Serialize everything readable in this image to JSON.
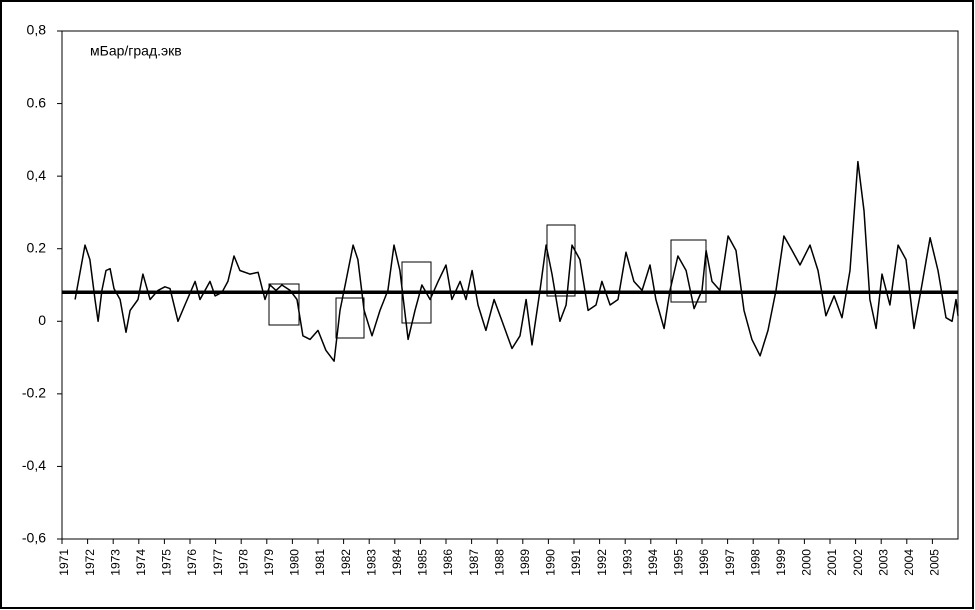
{
  "chart_data": {
    "type": "line",
    "annotation": "мБар/град.экв",
    "x": [
      1971.51,
      1971.9,
      1972.09,
      1972.29,
      1972.41,
      1972.56,
      1972.72,
      1972.88,
      1973.03,
      1973.27,
      1973.5,
      1973.66,
      1973.97,
      1974.16,
      1974.44,
      1974.75,
      1975.02,
      1975.22,
      1975.53,
      1975.8,
      1976.2,
      1976.39,
      1976.78,
      1976.98,
      1977.25,
      1977.48,
      1977.72,
      1977.95,
      1978.34,
      1978.66,
      1978.93,
      1979.13,
      1979.36,
      1979.59,
      1979.91,
      1980.18,
      1980.41,
      1980.69,
      1981.0,
      1981.31,
      1981.63,
      1981.86,
      1982.09,
      1982.37,
      1982.56,
      1982.8,
      1983.11,
      1983.42,
      1983.73,
      1983.97,
      1984.2,
      1984.52,
      1984.79,
      1985.06,
      1985.38,
      1985.69,
      1986.0,
      1986.23,
      1986.55,
      1986.78,
      1987.02,
      1987.25,
      1987.56,
      1987.88,
      1988.19,
      1988.58,
      1988.89,
      1989.13,
      1989.36,
      1989.67,
      1989.91,
      1990.14,
      1990.45,
      1990.69,
      1990.92,
      1991.23,
      1991.55,
      1991.86,
      1992.09,
      1992.41,
      1992.72,
      1993.03,
      1993.34,
      1993.66,
      1993.97,
      1994.2,
      1994.52,
      1994.75,
      1995.06,
      1995.38,
      1995.69,
      1996.0,
      1996.16,
      1996.39,
      1996.7,
      1997.02,
      1997.33,
      1997.64,
      1997.95,
      1998.27,
      1998.58,
      1998.89,
      1999.2,
      1999.52,
      1999.83,
      2000.22,
      2000.53,
      2000.84,
      2001.16,
      2001.47,
      2001.78,
      2002.09,
      2002.33,
      2002.56,
      2002.8,
      2003.03,
      2003.34,
      2003.66,
      2003.97,
      2004.28,
      2004.59,
      2004.91,
      2005.22,
      2005.53,
      2005.77,
      2005.92,
      2006.0
    ],
    "series": [
      {
        "name": null,
        "color": "#000000",
        "values": [
          0.06,
          0.21,
          0.17,
          0.06,
          0.0,
          0.085,
          0.14,
          0.145,
          0.09,
          0.06,
          -0.03,
          0.03,
          0.06,
          0.13,
          0.06,
          0.085,
          0.095,
          0.09,
          0.0,
          0.045,
          0.11,
          0.06,
          0.11,
          0.07,
          0.08,
          0.11,
          0.18,
          0.14,
          0.13,
          0.135,
          0.06,
          0.1,
          0.085,
          0.1,
          0.085,
          0.06,
          -0.04,
          -0.05,
          -0.025,
          -0.08,
          -0.11,
          0.03,
          0.11,
          0.21,
          0.17,
          0.03,
          -0.04,
          0.03,
          0.085,
          0.21,
          0.14,
          -0.05,
          0.03,
          0.1,
          0.06,
          0.11,
          0.155,
          0.06,
          0.11,
          0.06,
          0.14,
          0.045,
          -0.025,
          0.06,
          0.0,
          -0.075,
          -0.04,
          0.06,
          -0.065,
          0.085,
          0.21,
          0.13,
          0.0,
          0.045,
          0.21,
          0.17,
          0.03,
          0.045,
          0.11,
          0.045,
          0.06,
          0.19,
          0.11,
          0.085,
          0.155,
          0.06,
          -0.02,
          0.085,
          0.18,
          0.14,
          0.035,
          0.085,
          0.195,
          0.11,
          0.085,
          0.235,
          0.195,
          0.03,
          -0.05,
          -0.095,
          -0.025,
          0.085,
          0.235,
          0.195,
          0.155,
          0.21,
          0.14,
          0.015,
          0.07,
          0.01,
          0.14,
          0.44,
          0.305,
          0.06,
          -0.02,
          0.13,
          0.045,
          0.21,
          0.17,
          -0.02,
          0.1,
          0.23,
          0.14,
          0.01,
          0.0,
          0.06,
          0.015
        ]
      }
    ],
    "reference_line": 0.08,
    "xlim": [
      1971,
      2006
    ],
    "xticks": [
      1971,
      1972,
      1973,
      1974,
      1975,
      1976,
      1977,
      1978,
      1979,
      1980,
      1981,
      1982,
      1983,
      1984,
      1985,
      1986,
      1987,
      1988,
      1989,
      1990,
      1991,
      1992,
      1993,
      1994,
      1995,
      1996,
      1997,
      1998,
      1999,
      2000,
      2001,
      2002,
      2003,
      2004,
      2005
    ],
    "ylim": [
      -0.6,
      0.8
    ],
    "yticks": [
      {
        "value": -0.6,
        "label": "-0,6"
      },
      {
        "value": -0.4,
        "label": "-0,4"
      },
      {
        "value": -0.2,
        "label": "-0.2"
      },
      0,
      {
        "value": 0.2,
        "label": "0.2"
      },
      {
        "value": 0.4,
        "label": "0,4"
      },
      {
        "value": 0.6,
        "label": "0.6"
      },
      {
        "value": 0.8,
        "label": "0,8"
      }
    ],
    "grid": false
  }
}
